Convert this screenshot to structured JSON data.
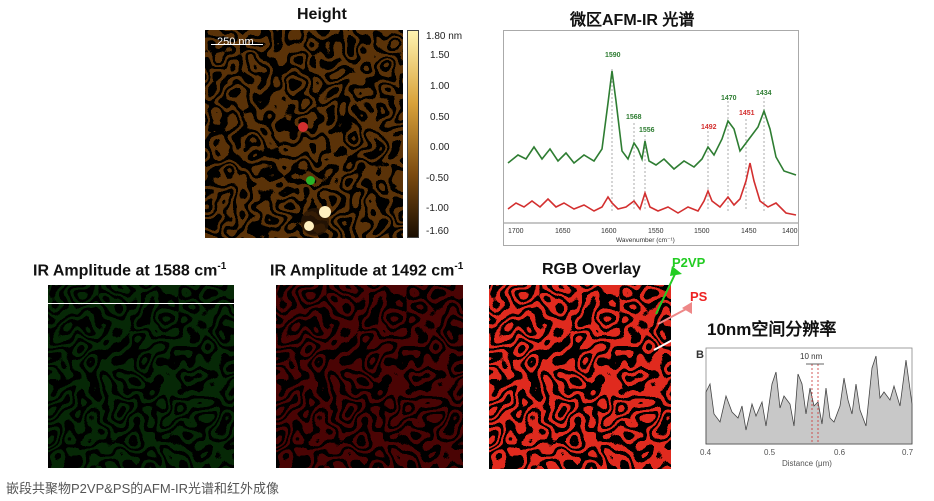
{
  "height_panel": {
    "title": "Height",
    "scale_bar": "250 nm",
    "colorbar_ticks": [
      "1.80 nm",
      "1.50",
      "1.00",
      "0.50",
      "0.00",
      "-0.50",
      "-1.00",
      "-1.60"
    ]
  },
  "spectrum_panel": {
    "title": "微区AFM-IR 光谱",
    "xlabel": "Wavenumber (cm⁻¹)",
    "x_ticks": [
      "1700",
      "1650",
      "1600",
      "1550",
      "1500",
      "1450",
      "1400"
    ],
    "green_peaks": [
      "1590",
      "1568",
      "1556",
      "1470",
      "1434"
    ],
    "red_peaks": [
      "1492",
      "1451"
    ]
  },
  "ir_panels": [
    {
      "title": "IR Amplitude at 1588 cm",
      "superscript": "-1"
    },
    {
      "title": "IR Amplitude at 1492 cm",
      "superscript": "-1"
    },
    {
      "title": "RGB Overlay",
      "superscript": ""
    }
  ],
  "labels": {
    "p2vp": "P2VP",
    "ps": "PS",
    "resolution": "10nm空间分辨率"
  },
  "profile_panel": {
    "letter": "B",
    "annotation": "10 nm",
    "xlabel": "Distance (μm)",
    "x_ticks": [
      "0.4",
      "0.5",
      "0.6",
      "0.7"
    ]
  },
  "caption": "嵌段共聚物P2VP&PS的AFM-IR光谱和红外成像",
  "colors": {
    "green_spectrum": "#2e7d32",
    "red_spectrum": "#d32f2f",
    "p2vp": "#22cc22",
    "ps": "#ee2222"
  }
}
